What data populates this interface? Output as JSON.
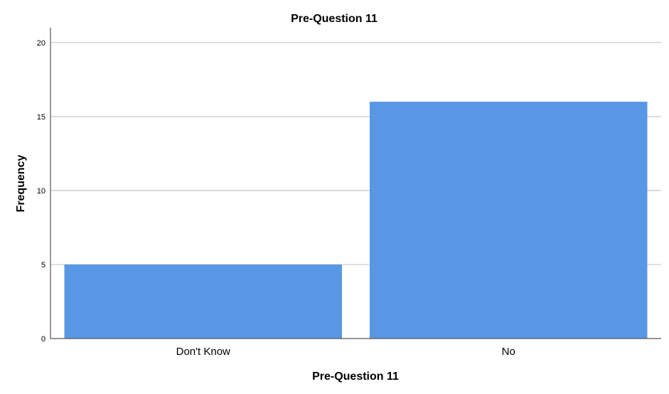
{
  "chart_data": {
    "type": "bar",
    "title": "Pre-Question 11",
    "xlabel": "Pre-Question 11",
    "ylabel": "Frequency",
    "categories": [
      "Don't Know",
      "No"
    ],
    "values": [
      5,
      16
    ],
    "ylim": [
      0,
      21
    ],
    "yticks": [
      "0",
      "5",
      "10",
      "15",
      "20"
    ],
    "grid": true,
    "bar_color": "#5897e4",
    "grid_color": "#c8c8c8",
    "axis_color": "#555555"
  }
}
